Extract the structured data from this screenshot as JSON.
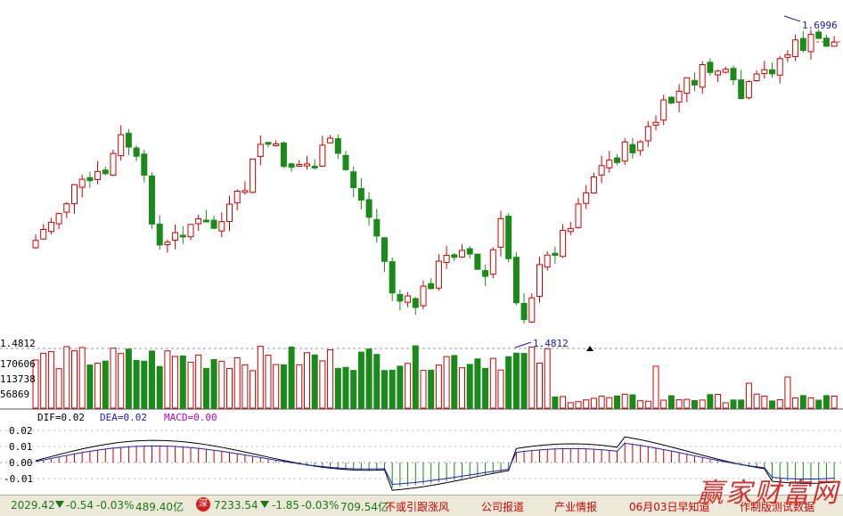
{
  "price_panel": {
    "high_label": "1.6996",
    "low_label": "1.4812",
    "axis_label": "1.4812"
  },
  "volume_panel": {
    "ticks": [
      "170606",
      "113738",
      "56869"
    ]
  },
  "macd_panel": {
    "dif_label": "DIF=0.02",
    "dea_label": "DEA=0.02",
    "macd_label": "MACD=0.00",
    "ticks": [
      "0.02",
      "0.01",
      "0.00",
      "-0.01"
    ]
  },
  "status_bar": {
    "index1_value": "2029.42",
    "index1_change": "-0.54",
    "index1_pct": "-0.03%",
    "index1_amount": "489.40亿",
    "index2_badge": "深",
    "index2_value": "7233.54",
    "index2_change": "-1.85",
    "index2_pct": "-0.03%",
    "index2_amount": "709.54亿",
    "news1": "不或引跟涨风",
    "news2": "公司报道",
    "news3": "产业情报",
    "news4": "06月03日早知道",
    "news5": "作制版测试数据",
    "logo": "赢家财富网"
  },
  "colors": {
    "up": "#d00000",
    "down": "#1a8a1a",
    "dif_line": "#000000",
    "dea_line": "#2020c0",
    "macd_text": "#c000c0"
  },
  "chart_data": {
    "type": "candlestick",
    "price_range": [
      1.4812,
      1.6996
    ],
    "candles": [
      {
        "o": 1.53,
        "c": 1.56,
        "h": 1.57,
        "l": 1.52
      },
      {
        "o": 1.56,
        "c": 1.57,
        "h": 1.58,
        "l": 1.55
      },
      {
        "o": 1.57,
        "c": 1.575,
        "h": 1.59,
        "l": 1.56
      },
      {
        "o": 1.575,
        "c": 1.57,
        "h": 1.58,
        "l": 1.56
      },
      {
        "o": 1.57,
        "c": 1.58,
        "h": 1.59,
        "l": 1.565
      },
      {
        "o": 1.58,
        "c": 1.575,
        "h": 1.585,
        "l": 1.57
      },
      {
        "o": 1.575,
        "c": 1.565,
        "h": 1.585,
        "l": 1.56
      },
      {
        "o": 1.565,
        "c": 1.58,
        "h": 1.59,
        "l": 1.56
      },
      {
        "o": 1.58,
        "c": 1.585,
        "h": 1.595,
        "l": 1.575
      },
      {
        "o": 1.585,
        "c": 1.59,
        "h": 1.595,
        "l": 1.58
      }
    ],
    "volume_ticks": [
      "170606",
      "113738",
      "56869"
    ],
    "macd_ticks": [
      "0.02",
      "0.01",
      "0.00",
      "-0.01"
    ]
  }
}
